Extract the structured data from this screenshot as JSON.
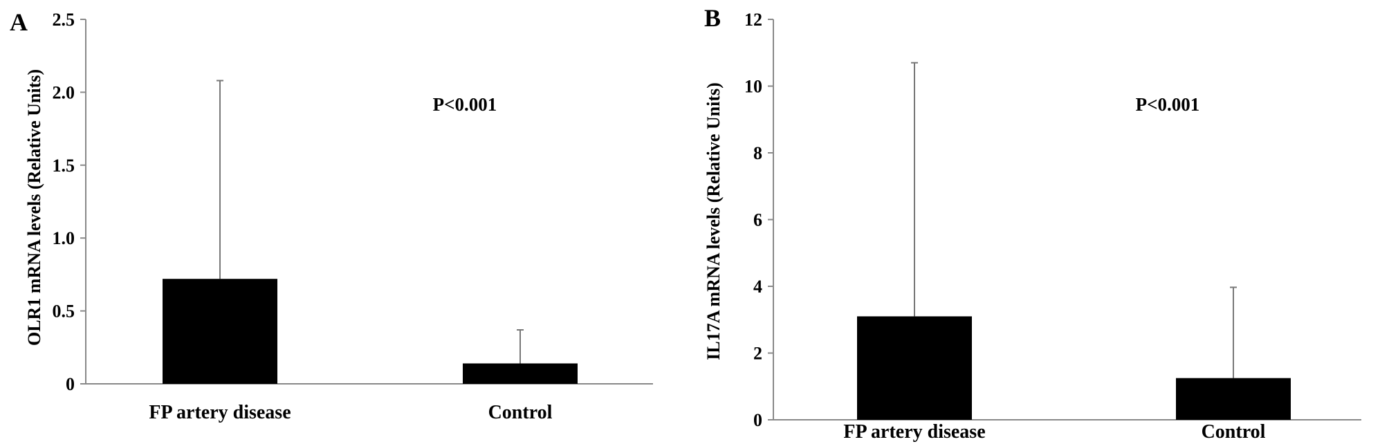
{
  "chart_data": [
    {
      "type": "bar",
      "panel_label": "A",
      "categories": [
        "FP artery disease",
        "Control"
      ],
      "values": [
        0.72,
        0.14
      ],
      "error_upper": [
        2.08,
        0.37
      ],
      "ylabel": "OLR1 mRNA levels (Relative Units)",
      "xlabel": "",
      "ylim": [
        0,
        2.5
      ],
      "yticks": [
        0,
        0.5,
        1.0,
        1.5,
        2.0,
        2.5
      ],
      "ytick_labels": [
        "0",
        "0.5",
        "1.0",
        "1.5",
        "2.0",
        "2.5"
      ],
      "annotation": "P<0.001",
      "bar_color": "#000000",
      "grid": false
    },
    {
      "type": "bar",
      "panel_label": "B",
      "categories": [
        "FP artery disease",
        "Control"
      ],
      "values": [
        3.1,
        1.25
      ],
      "error_upper": [
        10.7,
        3.97
      ],
      "ylabel": "IL17A mRNA levels (Relative Units)",
      "xlabel": "",
      "ylim": [
        0,
        12
      ],
      "yticks": [
        0,
        2,
        4,
        6,
        8,
        10,
        12
      ],
      "ytick_labels": [
        "0",
        "2",
        "4",
        "6",
        "8",
        "10",
        "12"
      ],
      "annotation": "P<0.001",
      "bar_color": "#000000",
      "grid": false
    }
  ]
}
